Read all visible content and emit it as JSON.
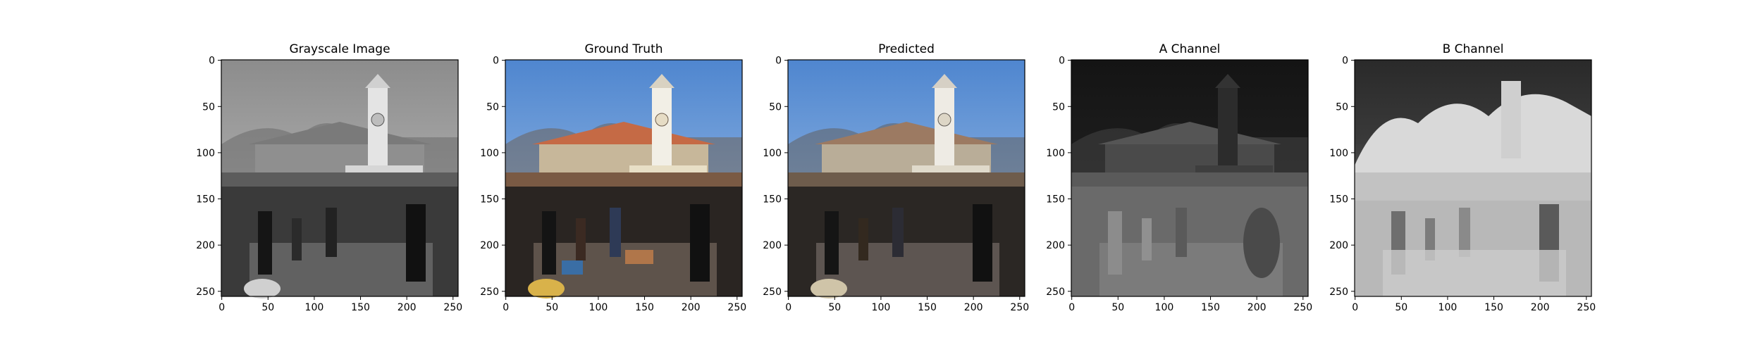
{
  "panels": [
    {
      "title": "Grayscale Image",
      "mode": "gray"
    },
    {
      "title": "Ground Truth",
      "mode": "color"
    },
    {
      "title": "Predicted",
      "mode": "color"
    },
    {
      "title": "A Channel",
      "mode": "a"
    },
    {
      "title": "B Channel",
      "mode": "b"
    }
  ],
  "axes": {
    "x_ticks": [
      "0",
      "50",
      "100",
      "150",
      "200",
      "250"
    ],
    "y_ticks": [
      "0",
      "50",
      "100",
      "150",
      "200",
      "250"
    ],
    "x_values": [
      0,
      50,
      100,
      150,
      200,
      250
    ],
    "y_values": [
      0,
      50,
      100,
      150,
      200,
      250
    ],
    "range": [
      0,
      255
    ]
  },
  "colors": {
    "sky_color": "#7fa9dc",
    "roof_color": "#c56a45",
    "tower_color": "#f2efe6",
    "wall_color": "#e8dfc6",
    "crowd_dark": "#2a2522",
    "gray_sky": "#a9a9a9",
    "a_dark": "#1a1a1a",
    "b_light": "#dcdcdc"
  }
}
